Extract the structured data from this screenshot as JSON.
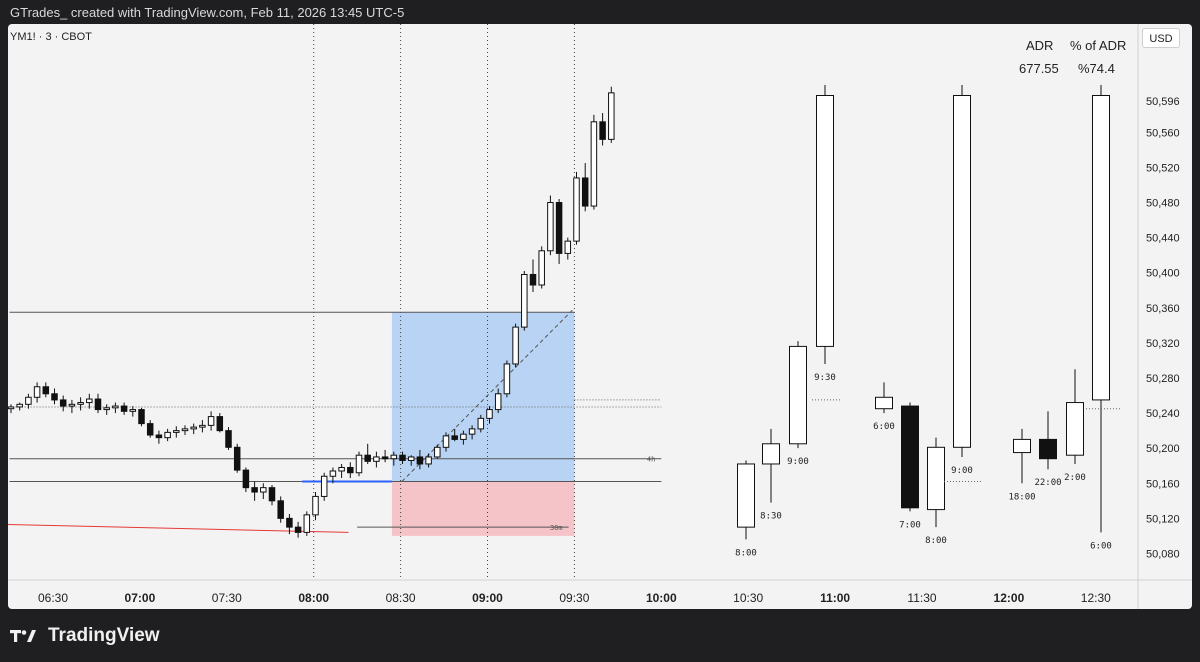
{
  "header": {
    "attribution": "GTrades_ created with TradingView.com, Feb 11, 2026 13:45 UTC-5"
  },
  "symbol": "YM1! · 3 · CBOT",
  "currency": "USD",
  "adr": {
    "label": "ADR",
    "value": "677.55",
    "pct_label": "% of ADR",
    "pct_value": "%74.4"
  },
  "footer": {
    "brand": "TradingView",
    "logo_icon": "tradingview-logo-icon"
  },
  "colors": {
    "box_upper": "#b8d3f3",
    "box_lower": "#f4c4c8",
    "blue_line": "#2962ff",
    "red_line": "#e53935"
  },
  "chart_data": {
    "type": "candlestick",
    "ylim": [
      50060,
      50655
    ],
    "y_ticks": [
      50080,
      50120,
      50160,
      50200,
      50240,
      50280,
      50320,
      50360,
      50400,
      50440,
      50480,
      50520,
      50560,
      50596
    ],
    "y_tick_labels": [
      "50,080",
      "50,120",
      "50,160",
      "50,200",
      "50,240",
      "50,280",
      "50,320",
      "50,360",
      "50,400",
      "50,440",
      "50,480",
      "50,520",
      "50,560",
      "50,596"
    ],
    "x_ticks": [
      {
        "t": "06:30",
        "bold": false
      },
      {
        "t": "07:00",
        "bold": true
      },
      {
        "t": "07:30",
        "bold": false
      },
      {
        "t": "08:00",
        "bold": true
      },
      {
        "t": "08:30",
        "bold": false
      },
      {
        "t": "09:00",
        "bold": true
      },
      {
        "t": "09:30",
        "bold": false
      },
      {
        "t": "10:00",
        "bold": true
      },
      {
        "t": "10:30",
        "bold": false
      },
      {
        "t": "11:00",
        "bold": true
      },
      {
        "t": "11:30",
        "bold": false
      },
      {
        "t": "12:00",
        "bold": true
      },
      {
        "t": "12:30",
        "bold": false
      }
    ],
    "vlines": [
      "08:00",
      "08:30",
      "09:00",
      "09:30"
    ],
    "levels": [
      {
        "y": 50355,
        "from": "06:15",
        "to": "09:30",
        "label": ""
      },
      {
        "y": 50247,
        "from": "06:15",
        "to": "10:00",
        "label": "",
        "style": "dotted"
      },
      {
        "y": 50188,
        "from": "06:15",
        "to": "10:00",
        "label": "4h"
      },
      {
        "y": 50162,
        "from": "06:15",
        "to": "10:00",
        "label": ""
      },
      {
        "y": 50110,
        "from": "08:15",
        "to": "09:28",
        "label": "30m"
      },
      {
        "y": 50255,
        "from": "09:30",
        "to": "10:00",
        "label": "",
        "style": "dotted"
      }
    ],
    "position_box": {
      "from": "08:27",
      "to": "09:30",
      "entry": 50162,
      "target": 50355,
      "stop": 50100
    },
    "candles_3m": [
      [
        50245,
        50250,
        50240,
        50247
      ],
      [
        50247,
        50252,
        50243,
        50250
      ],
      [
        50250,
        50262,
        50245,
        50258
      ],
      [
        50258,
        50275,
        50252,
        50270
      ],
      [
        50270,
        50275,
        50258,
        50262
      ],
      [
        50262,
        50268,
        50250,
        50255
      ],
      [
        50255,
        50260,
        50242,
        50248
      ],
      [
        50248,
        50255,
        50240,
        50250
      ],
      [
        50250,
        50258,
        50243,
        50252
      ],
      [
        50252,
        50262,
        50245,
        50256
      ],
      [
        50256,
        50262,
        50240,
        50244
      ],
      [
        50244,
        50250,
        50238,
        50246
      ],
      [
        50246,
        50252,
        50240,
        50248
      ],
      [
        50248,
        50252,
        50238,
        50242
      ],
      [
        50242,
        50248,
        50236,
        50244
      ],
      [
        50244,
        50246,
        50225,
        50228
      ],
      [
        50228,
        50232,
        50212,
        50215
      ],
      [
        50215,
        50220,
        50205,
        50212
      ],
      [
        50212,
        50222,
        50208,
        50218
      ],
      [
        50218,
        50225,
        50212,
        50220
      ],
      [
        50220,
        50226,
        50215,
        50222
      ],
      [
        50222,
        50228,
        50216,
        50224
      ],
      [
        50224,
        50232,
        50218,
        50226
      ],
      [
        50226,
        50242,
        50220,
        50236
      ],
      [
        50236,
        50240,
        50218,
        50220
      ],
      [
        50220,
        50224,
        50198,
        50201
      ],
      [
        50201,
        50205,
        50172,
        50175
      ],
      [
        50175,
        50178,
        50150,
        50155
      ],
      [
        50155,
        50162,
        50140,
        50150
      ],
      [
        50150,
        50160,
        50142,
        50155
      ],
      [
        50155,
        50158,
        50135,
        50140
      ],
      [
        50140,
        50145,
        50115,
        50120
      ],
      [
        50120,
        50125,
        50102,
        50110
      ],
      [
        50110,
        50116,
        50098,
        50104
      ],
      [
        50104,
        50128,
        50100,
        50124
      ],
      [
        50124,
        50150,
        50118,
        50145
      ],
      [
        50145,
        50172,
        50140,
        50168
      ],
      [
        50168,
        50178,
        50160,
        50174
      ],
      [
        50174,
        50182,
        50166,
        50178
      ],
      [
        50178,
        50184,
        50166,
        50172
      ],
      [
        50172,
        50196,
        50168,
        50192
      ],
      [
        50192,
        50205,
        50182,
        50185
      ],
      [
        50185,
        50196,
        50178,
        50190
      ],
      [
        50190,
        50198,
        50184,
        50188
      ],
      [
        50188,
        50196,
        50180,
        50192
      ],
      [
        50192,
        50196,
        50182,
        50186
      ],
      [
        50186,
        50192,
        50180,
        50190
      ],
      [
        50190,
        50198,
        50176,
        50182
      ],
      [
        50182,
        50194,
        50178,
        50190
      ],
      [
        50190,
        50204,
        50188,
        50201
      ],
      [
        50201,
        50218,
        50196,
        50214
      ],
      [
        50214,
        50222,
        50208,
        50210
      ],
      [
        50210,
        50220,
        50204,
        50216
      ],
      [
        50216,
        50226,
        50210,
        50222
      ],
      [
        50222,
        50238,
        50218,
        50234
      ],
      [
        50234,
        50248,
        50228,
        50244
      ],
      [
        50244,
        50268,
        50240,
        50262
      ],
      [
        50262,
        50300,
        50258,
        50296
      ],
      [
        50296,
        50342,
        50292,
        50338
      ],
      [
        50338,
        50402,
        50334,
        50398
      ],
      [
        50398,
        50415,
        50378,
        50386
      ],
      [
        50386,
        50430,
        50382,
        50425
      ],
      [
        50425,
        50488,
        50420,
        50480
      ],
      [
        50480,
        50484,
        50410,
        50422
      ],
      [
        50422,
        50440,
        50415,
        50436
      ],
      [
        50436,
        50515,
        50432,
        50508
      ],
      [
        50508,
        50525,
        50470,
        50476
      ],
      [
        50476,
        50580,
        50472,
        50572
      ],
      [
        50572,
        50582,
        50545,
        50552
      ],
      [
        50552,
        50612,
        50548,
        50605
      ]
    ],
    "htf_candles": [
      {
        "tf": "1h",
        "o": 50110,
        "h": 50186,
        "l": 50096,
        "c": 50182,
        "label": "8:00"
      },
      {
        "tf": "1h",
        "o": 50182,
        "h": 50222,
        "l": 50138,
        "c": 50205,
        "label": "8:30"
      },
      {
        "tf": "1h",
        "o": 50205,
        "h": 50322,
        "l": 50200,
        "c": 50316,
        "label": "9:00"
      },
      {
        "tf": "1h",
        "o": 50316,
        "h": 50614,
        "l": 50296,
        "c": 50602,
        "label": "9:30"
      },
      {
        "tf": "4h",
        "o": 50245,
        "h": 50275,
        "l": 50240,
        "c": 50258,
        "label": "6:00"
      },
      {
        "tf": "4h",
        "o": 50248,
        "h": 50252,
        "l": 50128,
        "c": 50132,
        "label": "7:00"
      },
      {
        "tf": "4h",
        "o": 50130,
        "h": 50212,
        "l": 50110,
        "c": 50201,
        "label": "8:00"
      },
      {
        "tf": "4h",
        "o": 50201,
        "h": 50614,
        "l": 50190,
        "c": 50602,
        "label": "9:00"
      },
      {
        "tf": "D",
        "o": 50195,
        "h": 50222,
        "l": 50160,
        "c": 50210,
        "label": "18:00"
      },
      {
        "tf": "D",
        "o": 50210,
        "h": 50242,
        "l": 50176,
        "c": 50188,
        "label": "22:00"
      },
      {
        "tf": "D",
        "o": 50192,
        "h": 50290,
        "l": 50182,
        "c": 50252,
        "label": "2:00"
      },
      {
        "tf": "D",
        "o": 50255,
        "h": 50614,
        "l": 50104,
        "c": 50602,
        "label": "6:00"
      }
    ]
  }
}
